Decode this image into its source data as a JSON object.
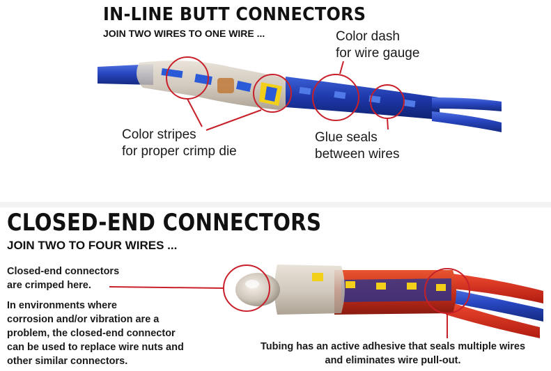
{
  "top": {
    "title": "IN-LINE BUTT CONNECTORS",
    "subtitle": "JOIN TWO WIRES TO ONE WIRE ...",
    "label_dash": [
      "Color dash",
      "for wire gauge"
    ],
    "label_stripes": [
      "Color stripes",
      "for proper crimp die"
    ],
    "label_glue": [
      "Glue seals",
      "between wires"
    ]
  },
  "bottom": {
    "title": "CLOSED-END CONNECTORS",
    "subtitle": "JOIN TWO TO FOUR WIRES ...",
    "label_crimp": [
      "Closed-end connectors",
      "are crimped here."
    ],
    "label_env": [
      "In environments where",
      "corrosion and/or vibration are a",
      "problem, the closed-end connector",
      "can be used to replace wire nuts and",
      "other similar connectors."
    ],
    "label_tubing": [
      "Tubing has an active adhesive that seals multiple wires",
      "and eliminates wire pull-out."
    ]
  },
  "colors": {
    "callout": "#c8202a",
    "wire_blue": "#1f3fae",
    "wire_red": "#d8281c",
    "dash_blue": "#2a5ad8",
    "dash_yellow": "#f2d019"
  }
}
